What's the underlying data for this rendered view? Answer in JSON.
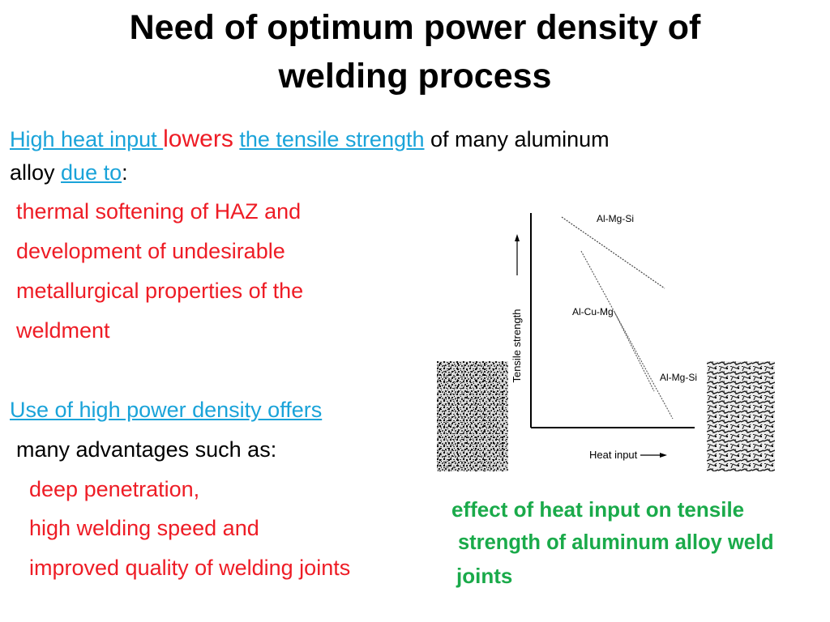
{
  "slide": {
    "title_line1": "Need of optimum power density of",
    "title_line2": "welding process",
    "intro": {
      "part1": "High heat input ",
      "part2": "lowers",
      "part3": "the tensile strength",
      "part4": " of many aluminum",
      "line2_text": "alloy ",
      "line2_link": "due to",
      "line2_colon": ":"
    },
    "reasons": [
      "thermal softening of HAZ and",
      "development of undesirable",
      "metallurgical properties of the",
      "weldment"
    ],
    "power": {
      "heading": "Use of high power density offers",
      "subline": "many advantages such as:",
      "advantages": [
        "deep penetration,",
        "high welding speed and",
        "improved quality of welding joints"
      ]
    },
    "figure": {
      "ylabel": "Tensile strength",
      "xlabel": "Heat input",
      "line_labels": [
        "Al-Mg-Si",
        "Al-Cu-Mg",
        "Al-Mg-Si"
      ]
    },
    "caption": [
      "effect of heat input on tensile",
      "strength of aluminum alloy weld",
      "joints"
    ]
  },
  "colors": {
    "link": "#1aa3d9",
    "red": "#ee1c25",
    "caption_green": "#1aaa4a"
  }
}
